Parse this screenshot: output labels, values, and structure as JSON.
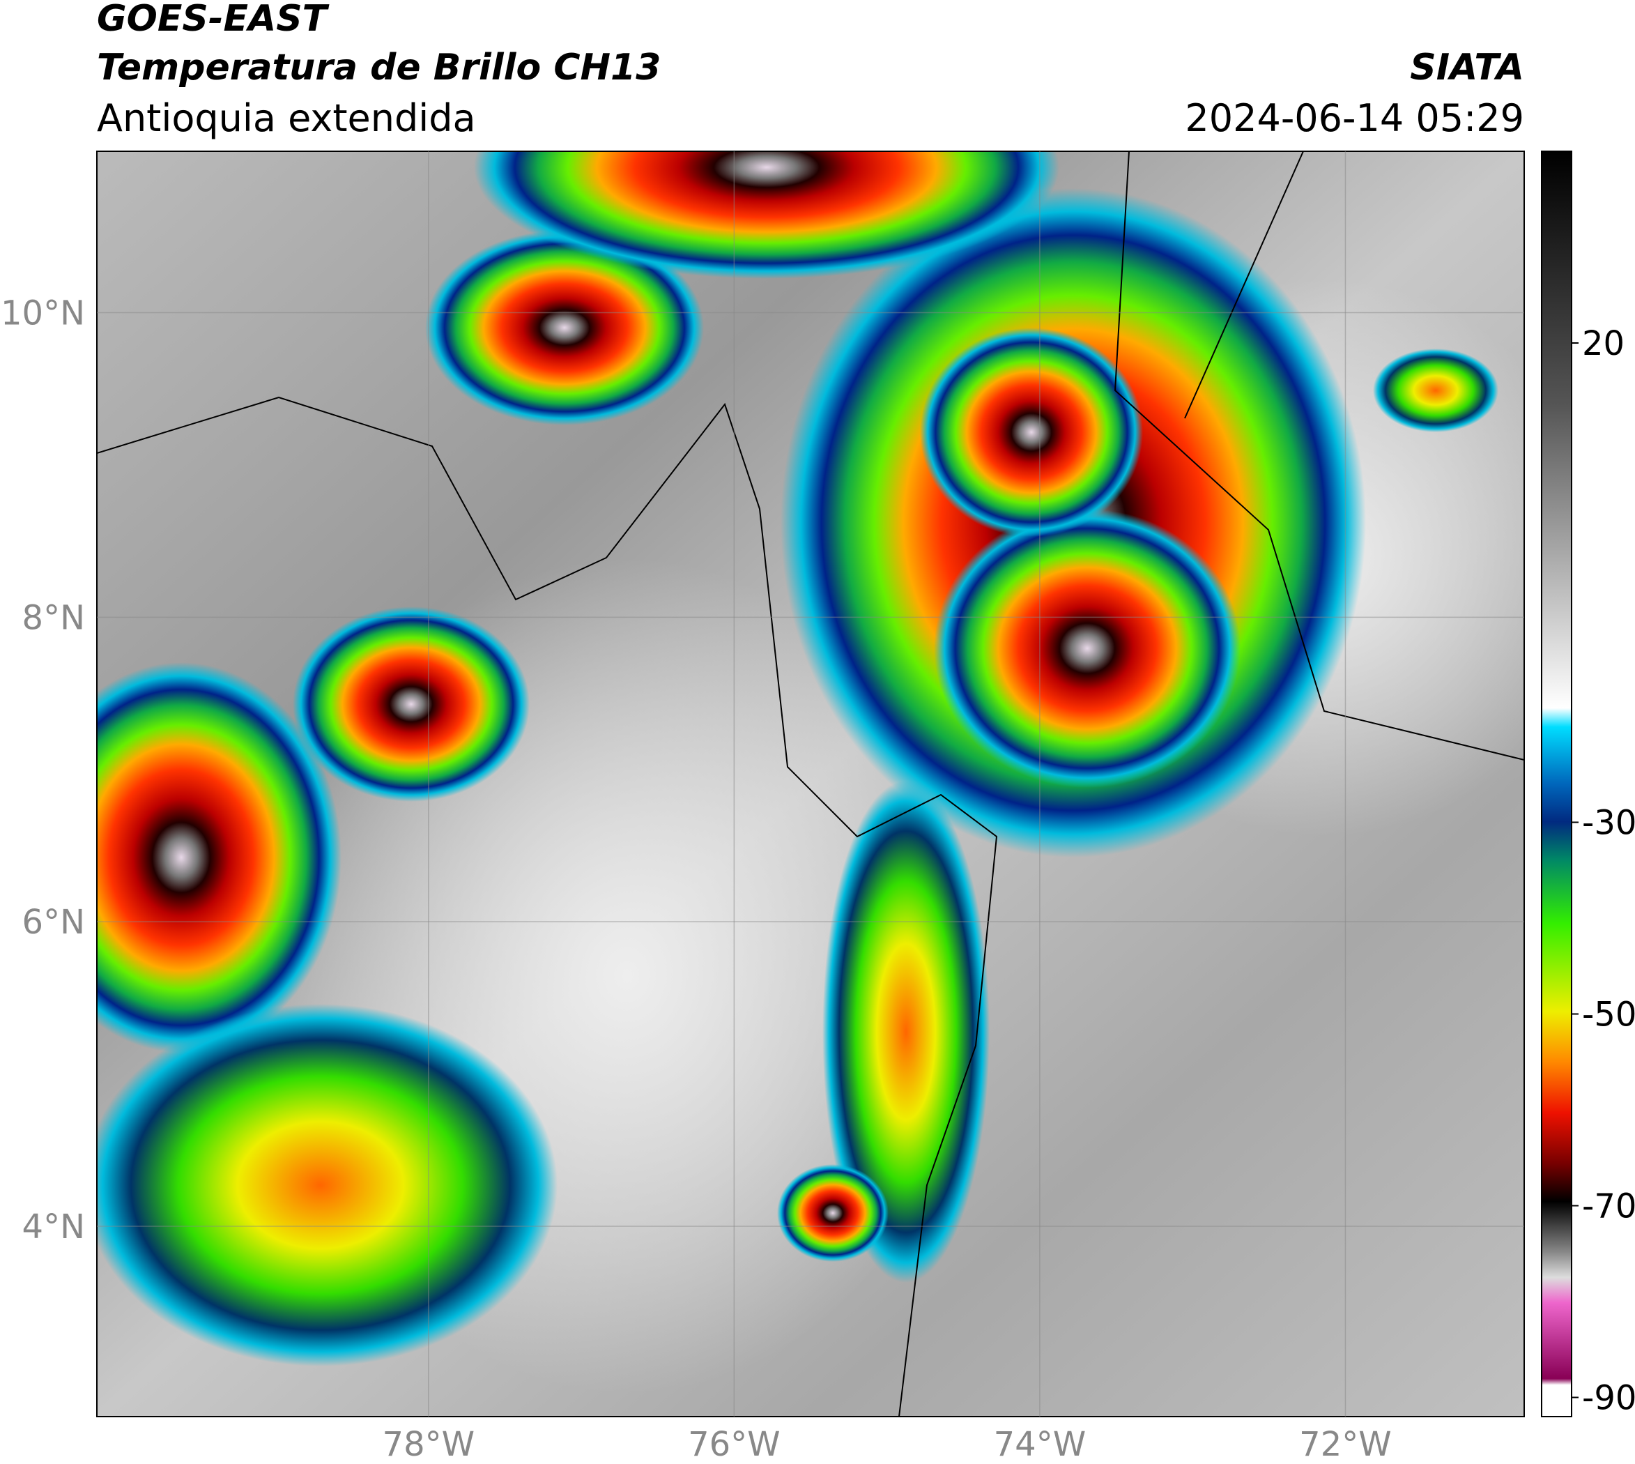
{
  "header": {
    "title": "GOES-EAST",
    "subtitle": "Temperatura de Brillo CH13",
    "region": "Antioquia extendida",
    "source": "SIATA",
    "datetime": "2024-06-14 05:29"
  },
  "map": {
    "lon_range": [
      -80.17,
      -70.83
    ],
    "lat_range": [
      2.75,
      11.06
    ],
    "lon_ticks": [
      {
        "value": -78,
        "label": "78°W"
      },
      {
        "value": -76,
        "label": "76°W"
      },
      {
        "value": -74,
        "label": "74°W"
      },
      {
        "value": -72,
        "label": "72°W"
      }
    ],
    "lat_ticks": [
      {
        "value": 10,
        "label": "10°N"
      },
      {
        "value": 8,
        "label": "8°N"
      },
      {
        "value": 6,
        "label": "6°N"
      },
      {
        "value": 4,
        "label": "4°N"
      }
    ]
  },
  "colorbar": {
    "range": [
      -92,
      40
    ],
    "ticks": [
      20,
      -30,
      -50,
      -70,
      -90
    ]
  }
}
